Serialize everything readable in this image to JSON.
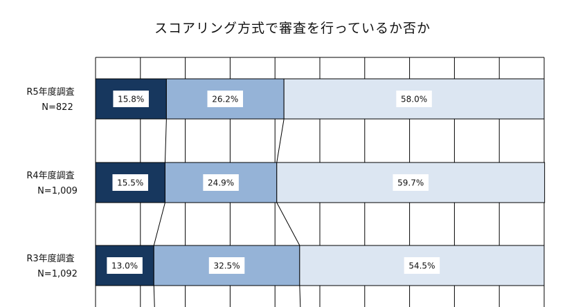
{
  "chart_data": {
    "type": "bar",
    "orientation": "horizontal",
    "stacked": "percent",
    "title": "スコアリング方式で審査を行っているか否か",
    "categories": [
      {
        "name": "R5年度調査",
        "n": "N=822"
      },
      {
        "name": "R4年度調査",
        "n": "N=1,009"
      },
      {
        "name": "R3年度調査",
        "n": "N=1,092"
      }
    ],
    "series": [
      {
        "values": [
          15.8,
          15.5,
          13.0
        ],
        "labels": [
          "15.8%",
          "15.5%",
          "13.0%"
        ],
        "color": "#17375e"
      },
      {
        "values": [
          26.2,
          24.9,
          32.5
        ],
        "labels": [
          "26.2%",
          "24.9%",
          "32.5%"
        ],
        "color": "#95b3d7"
      },
      {
        "values": [
          58.0,
          59.7,
          54.5
        ],
        "labels": [
          "58.0%",
          "59.7%",
          "54.5%"
        ],
        "color": "#dce6f2"
      }
    ],
    "xlim": [
      0,
      100
    ],
    "grid": true,
    "legend": "none"
  }
}
